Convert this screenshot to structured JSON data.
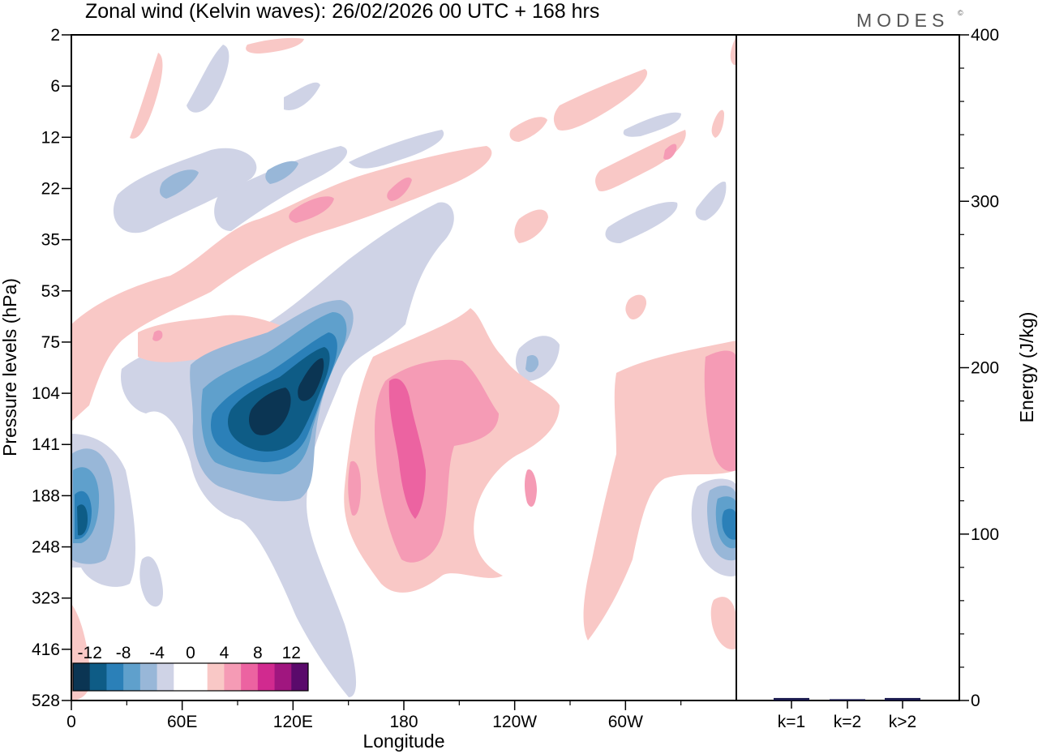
{
  "header": {
    "title": "Zonal wind (Kelvin waves):  26/02/2026  00 UTC  + 168 hrs",
    "logo_text": "MODES",
    "logo_mark": "©"
  },
  "chart_data": [
    {
      "type": "heatmap",
      "title": "Zonal wind (Kelvin waves)",
      "xlabel": "Longitude",
      "ylabel": "Pressure levels (hPa)",
      "x_ticks": [
        "0",
        "60E",
        "120E",
        "180",
        "120W",
        "60W"
      ],
      "x_tick_values": [
        0,
        60,
        120,
        180,
        240,
        300
      ],
      "xlim": [
        0,
        360
      ],
      "y_ticks": [
        "2",
        "6",
        "12",
        "22",
        "35",
        "53",
        "75",
        "104",
        "141",
        "188",
        "248",
        "323",
        "416",
        "528"
      ],
      "y_axis_direction": "pressure increasing downward",
      "colorbar": {
        "labels": [
          "-12",
          "-8",
          "-4",
          "0",
          "4",
          "8",
          "12"
        ],
        "colors": [
          "#0b3553",
          "#0e5c86",
          "#2b80b8",
          "#5fa0cc",
          "#98b7d8",
          "#cfd3e6",
          "#ffffff",
          "#ffffff",
          "#f9c8c6",
          "#f59bb5",
          "#ec63a1",
          "#d12a8f",
          "#a0167f",
          "#5a0a6b"
        ]
      },
      "features": [
        {
          "description": "strong easterly (negative) anomaly",
          "lon_range": [
            40,
            140
          ],
          "pressure_range": [
            75,
            200
          ],
          "min_value": -14
        },
        {
          "description": "westerly (positive) anomaly",
          "lon_range": [
            150,
            220
          ],
          "pressure_range": [
            104,
            320
          ],
          "max_value": 10
        },
        {
          "description": "easterly anomaly",
          "lon_range": [
            0,
            20
          ],
          "pressure_range": [
            141,
            300
          ],
          "min_value": -10
        },
        {
          "description": "easterly anomaly",
          "lon_range": [
            345,
            360
          ],
          "pressure_range": [
            188,
            300
          ],
          "min_value": -8
        }
      ]
    },
    {
      "type": "bar",
      "ylabel": "Energy (J/kg)",
      "categories": [
        "k=1",
        "k=2",
        "k>2"
      ],
      "values": [
        1.5,
        0.8,
        1.5
      ],
      "ylim": [
        0,
        400
      ],
      "y_ticks": [
        "0",
        "100",
        "200",
        "300",
        "400"
      ],
      "bar_color": "#1a1a4e"
    }
  ]
}
